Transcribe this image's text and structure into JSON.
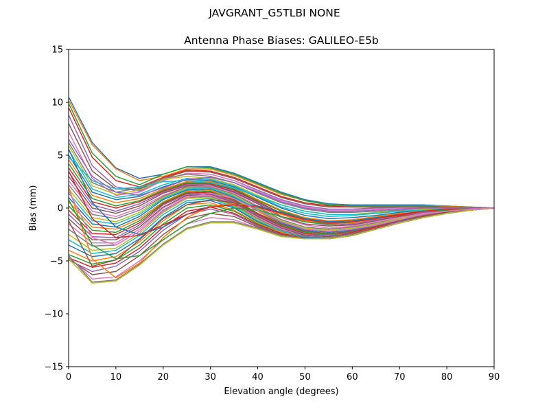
{
  "figure": {
    "suptitle": "JAVGRANT_G5TLBI NONE"
  },
  "chart_data": {
    "type": "line",
    "title": "Antenna Phase Biases: GALILEO-E5b",
    "xlabel": "Elevation angle (degrees)",
    "ylabel": "Bias (mm)",
    "xlim": [
      0,
      90
    ],
    "ylim": [
      -15,
      15
    ],
    "x_ticks": [
      "0",
      "10",
      "20",
      "30",
      "40",
      "50",
      "60",
      "70",
      "80",
      "90"
    ],
    "y_ticks": [
      "15",
      "10",
      "5",
      "0",
      "−5",
      "−10",
      "−15"
    ],
    "grid": false,
    "legend": "none",
    "colors": [
      "#1f77b4",
      "#ff7f0e",
      "#2ca02c",
      "#d62728",
      "#9467bd",
      "#8c564b",
      "#e377c2",
      "#7f7f7f",
      "#bcbd22",
      "#17becf"
    ],
    "x": [
      0,
      5,
      10,
      15,
      20,
      25,
      30,
      35,
      40,
      45,
      50,
      55,
      60,
      65,
      70,
      75,
      80,
      85,
      90
    ],
    "series": [
      {
        "values": [
          10.5,
          6.2,
          3.8,
          2.8,
          3.2,
          3.9,
          3.9,
          3.3,
          2.4,
          1.5,
          0.8,
          0.4,
          0.3,
          0.3,
          0.3,
          0.3,
          0.2,
          0.1,
          0.0
        ]
      },
      {
        "values": [
          10.2,
          6.0,
          3.7,
          2.6,
          3.0,
          3.7,
          3.7,
          3.1,
          2.2,
          1.3,
          0.7,
          0.3,
          0.2,
          0.2,
          0.2,
          0.2,
          0.2,
          0.1,
          0.0
        ]
      },
      {
        "values": [
          9.9,
          5.2,
          3.0,
          2.2,
          3.2,
          3.9,
          3.8,
          3.2,
          2.3,
          1.4,
          0.7,
          0.3,
          0.2,
          0.2,
          0.2,
          0.2,
          0.1,
          0.1,
          0.0
        ]
      },
      {
        "values": [
          9.5,
          4.8,
          2.6,
          2.0,
          2.9,
          3.6,
          3.5,
          2.9,
          2.0,
          1.1,
          0.5,
          0.2,
          0.1,
          0.1,
          0.1,
          0.1,
          0.1,
          0.0,
          0.0
        ]
      },
      {
        "values": [
          8.8,
          4.0,
          2.0,
          1.6,
          2.6,
          3.3,
          3.2,
          2.6,
          1.7,
          0.8,
          0.2,
          -0.1,
          -0.1,
          0.0,
          0.0,
          0.0,
          0.0,
          0.0,
          0.0
        ]
      },
      {
        "values": [
          8.0,
          3.5,
          1.8,
          1.8,
          2.8,
          3.5,
          3.4,
          2.8,
          1.9,
          1.0,
          0.4,
          0.1,
          0.1,
          0.1,
          0.1,
          0.1,
          0.1,
          0.0,
          0.0
        ]
      },
      {
        "values": [
          7.2,
          2.8,
          1.2,
          1.5,
          2.6,
          3.3,
          3.2,
          2.6,
          1.6,
          0.7,
          0.1,
          -0.2,
          -0.2,
          -0.1,
          0.0,
          0.0,
          0.0,
          0.0,
          0.0
        ]
      },
      {
        "values": [
          6.2,
          2.4,
          1.5,
          1.9,
          2.8,
          3.2,
          3.0,
          2.4,
          1.4,
          0.5,
          -0.1,
          -0.4,
          -0.4,
          -0.3,
          -0.2,
          -0.1,
          0.0,
          0.0,
          0.0
        ]
      },
      {
        "values": [
          5.9,
          2.1,
          1.3,
          1.7,
          2.7,
          3.0,
          2.8,
          2.2,
          1.2,
          0.3,
          -0.3,
          -0.6,
          -0.6,
          -0.4,
          -0.3,
          -0.1,
          0.0,
          0.0,
          0.0
        ]
      },
      {
        "values": [
          5.5,
          1.8,
          1.0,
          1.3,
          2.2,
          2.8,
          2.7,
          2.1,
          1.1,
          0.1,
          -0.5,
          -0.8,
          -0.7,
          -0.5,
          -0.3,
          -0.2,
          -0.1,
          0.0,
          0.0
        ]
      },
      {
        "values": [
          5.0,
          1.5,
          0.8,
          1.1,
          2.0,
          2.7,
          2.6,
          2.0,
          1.0,
          0.0,
          -0.7,
          -1.0,
          -0.9,
          -0.7,
          -0.4,
          -0.2,
          -0.1,
          0.0,
          0.0
        ]
      },
      {
        "values": [
          4.6,
          1.2,
          0.5,
          0.9,
          1.8,
          2.5,
          2.5,
          1.9,
          0.8,
          -0.2,
          -0.9,
          -1.2,
          -1.1,
          -0.8,
          -0.5,
          -0.3,
          -0.1,
          0.0,
          0.0
        ]
      },
      {
        "values": [
          4.2,
          0.9,
          0.2,
          0.7,
          1.7,
          2.4,
          2.4,
          1.8,
          0.7,
          -0.3,
          -1.0,
          -1.3,
          -1.2,
          -0.9,
          -0.6,
          -0.3,
          -0.1,
          0.0,
          0.0
        ]
      },
      {
        "values": [
          3.8,
          0.6,
          0.0,
          0.6,
          1.6,
          2.3,
          2.3,
          1.7,
          0.6,
          -0.5,
          -1.2,
          -1.5,
          -1.4,
          -1.0,
          -0.7,
          -0.4,
          -0.2,
          -0.1,
          0.0
        ]
      },
      {
        "values": [
          3.4,
          0.3,
          -0.3,
          0.4,
          1.5,
          2.2,
          2.2,
          1.6,
          0.5,
          -0.6,
          -1.3,
          -1.6,
          -1.5,
          -1.1,
          -0.8,
          -0.4,
          -0.2,
          -0.1,
          0.0
        ]
      },
      {
        "values": [
          3.0,
          0.0,
          -0.5,
          0.2,
          1.4,
          2.1,
          2.2,
          1.5,
          0.4,
          -0.8,
          -1.5,
          -1.7,
          -1.6,
          -1.2,
          -0.8,
          -0.5,
          -0.2,
          -0.1,
          0.0
        ]
      },
      {
        "values": [
          2.6,
          -0.3,
          -0.8,
          0.0,
          1.2,
          2.0,
          2.1,
          1.4,
          0.2,
          -0.9,
          -1.6,
          -1.9,
          -1.7,
          -1.3,
          -0.9,
          -0.5,
          -0.3,
          -0.1,
          0.0
        ]
      },
      {
        "values": [
          2.2,
          -0.6,
          -1.0,
          -0.2,
          1.1,
          2.0,
          2.0,
          1.3,
          0.1,
          -1.1,
          -1.8,
          -2.0,
          -1.8,
          -1.4,
          -1.0,
          -0.6,
          -0.3,
          -0.1,
          0.0
        ]
      },
      {
        "values": [
          1.8,
          -0.9,
          -1.3,
          -0.4,
          1.0,
          1.9,
          1.9,
          1.2,
          0.0,
          -1.2,
          -1.9,
          -2.1,
          -1.9,
          -1.5,
          -1.0,
          -0.6,
          -0.3,
          -0.1,
          0.0
        ]
      },
      {
        "values": [
          1.4,
          -1.2,
          -1.5,
          -0.6,
          0.9,
          1.8,
          1.9,
          1.1,
          -0.1,
          -1.3,
          -2.0,
          -2.2,
          -2.0,
          -1.6,
          -1.1,
          -0.6,
          -0.3,
          -0.1,
          0.0
        ]
      },
      {
        "values": [
          1.0,
          -1.5,
          -1.8,
          -0.8,
          0.8,
          1.7,
          1.8,
          1.0,
          -0.2,
          -1.4,
          -2.1,
          -2.3,
          -2.1,
          -1.6,
          -1.1,
          -0.7,
          -0.3,
          -0.1,
          0.0
        ]
      },
      {
        "values": [
          0.6,
          -1.8,
          -2.0,
          -1.0,
          0.6,
          1.6,
          1.7,
          0.9,
          -0.3,
          -1.5,
          -2.2,
          -2.4,
          -2.2,
          -1.7,
          -1.2,
          -0.7,
          -0.4,
          -0.1,
          0.0
        ]
      },
      {
        "values": [
          0.2,
          -2.1,
          -2.3,
          -1.2,
          0.5,
          1.5,
          1.6,
          0.8,
          -0.5,
          -1.6,
          -2.3,
          -2.5,
          -2.2,
          -1.8,
          -1.2,
          -0.7,
          -0.4,
          -0.1,
          0.0
        ]
      },
      {
        "values": [
          -0.2,
          -2.4,
          -2.5,
          -1.4,
          0.4,
          1.4,
          1.5,
          0.7,
          -0.6,
          -1.7,
          -2.4,
          -2.6,
          -2.3,
          -1.8,
          -1.3,
          -0.8,
          -0.4,
          -0.2,
          0.0
        ]
      },
      {
        "values": [
          -0.6,
          -2.7,
          -2.8,
          -1.6,
          0.3,
          1.3,
          1.4,
          0.6,
          -0.7,
          -1.8,
          -2.5,
          -2.6,
          -2.4,
          -1.9,
          -1.3,
          -0.8,
          -0.4,
          -0.2,
          0.0
        ]
      },
      {
        "values": [
          -1.0,
          -3.0,
          -3.0,
          -1.8,
          0.1,
          1.2,
          1.3,
          0.5,
          -0.8,
          -1.9,
          -2.6,
          -2.7,
          -2.4,
          -1.9,
          -1.4,
          -0.8,
          -0.4,
          -0.2,
          0.0
        ]
      },
      {
        "values": [
          -1.5,
          -3.3,
          -3.3,
          -2.0,
          0.0,
          1.1,
          1.2,
          0.4,
          -0.9,
          -2.0,
          -2.7,
          -2.8,
          -2.5,
          -2.0,
          -1.4,
          -0.9,
          -0.5,
          -0.2,
          0.0
        ]
      },
      {
        "values": [
          -2.0,
          -3.6,
          -3.5,
          -2.2,
          -0.2,
          1.0,
          1.1,
          0.3,
          -1.0,
          -2.1,
          -2.7,
          -2.8,
          -2.5,
          -2.0,
          -1.4,
          -0.9,
          -0.5,
          -0.2,
          0.0
        ]
      },
      {
        "values": [
          -2.5,
          -4.0,
          -3.8,
          -2.4,
          -0.4,
          0.9,
          1.0,
          0.2,
          -1.1,
          -2.2,
          -2.8,
          -2.9,
          -2.6,
          -2.0,
          -1.4,
          -0.9,
          -0.5,
          -0.2,
          0.0
        ]
      },
      {
        "values": [
          -3.0,
          -4.3,
          -4.0,
          -2.6,
          -0.6,
          0.7,
          0.9,
          0.1,
          -1.2,
          -2.2,
          -2.8,
          -2.9,
          -2.6,
          -2.0,
          -1.4,
          -0.9,
          -0.5,
          -0.2,
          0.0
        ]
      },
      {
        "values": [
          -3.5,
          -4.6,
          -4.3,
          -2.9,
          -0.9,
          0.5,
          0.7,
          0.0,
          -1.3,
          -2.3,
          -2.8,
          -2.9,
          -2.6,
          -2.0,
          -1.4,
          -0.9,
          -0.5,
          -0.2,
          0.0
        ]
      },
      {
        "values": [
          -4.0,
          -5.0,
          -4.6,
          -3.2,
          -1.2,
          0.3,
          0.5,
          -0.2,
          -1.4,
          -2.3,
          -2.9,
          -2.9,
          -2.6,
          -2.0,
          -1.4,
          -0.9,
          -0.5,
          -0.2,
          0.0
        ]
      },
      {
        "values": [
          -4.4,
          -5.3,
          -4.9,
          -3.5,
          -1.5,
          0.0,
          0.3,
          -0.3,
          -1.5,
          -2.4,
          -2.9,
          -2.9,
          -2.6,
          -2.0,
          -1.4,
          -0.9,
          -0.5,
          -0.2,
          0.0
        ]
      },
      {
        "values": [
          -4.7,
          -5.6,
          -5.2,
          -3.8,
          -1.8,
          -0.3,
          0.1,
          -0.5,
          -1.6,
          -2.4,
          -2.9,
          -2.9,
          -2.6,
          -2.0,
          -1.4,
          -0.9,
          -0.5,
          -0.2,
          0.0
        ]
      },
      {
        "values": [
          -4.9,
          -6.0,
          -5.5,
          -4.1,
          -2.1,
          -0.6,
          -0.1,
          -0.6,
          -1.7,
          -2.5,
          -2.9,
          -2.9,
          -2.6,
          -2.0,
          -1.4,
          -0.9,
          -0.5,
          -0.2,
          0.0
        ]
      },
      {
        "values": [
          -4.8,
          -6.3,
          -6.0,
          -4.5,
          -2.5,
          -1.0,
          -0.5,
          -0.8,
          -1.8,
          -2.5,
          -2.9,
          -2.9,
          -2.6,
          -2.0,
          -1.4,
          -0.9,
          -0.5,
          -0.2,
          0.0
        ]
      },
      {
        "values": [
          -4.6,
          -6.7,
          -6.5,
          -5.0,
          -3.0,
          -1.5,
          -0.9,
          -1.1,
          -1.9,
          -2.6,
          -2.9,
          -2.9,
          -2.6,
          -2.0,
          -1.4,
          -0.9,
          -0.5,
          -0.2,
          0.0
        ]
      },
      {
        "values": [
          -4.5,
          -7.0,
          -6.8,
          -5.3,
          -3.4,
          -1.9,
          -1.3,
          -1.3,
          -1.9,
          -2.6,
          -2.9,
          -2.9,
          -2.6,
          -2.0,
          -1.4,
          -0.9,
          -0.5,
          -0.2,
          0.0
        ]
      },
      {
        "values": [
          -4.8,
          -7.1,
          -6.9,
          -5.4,
          -3.5,
          -2.0,
          -1.4,
          -1.4,
          -2.0,
          -2.7,
          -2.9,
          -2.9,
          -2.6,
          -2.0,
          -1.4,
          -0.9,
          -0.5,
          -0.2,
          0.0
        ]
      },
      {
        "values": [
          4.8,
          2.6,
          1.8,
          2.0,
          2.5,
          2.6,
          2.4,
          1.9,
          1.1,
          0.3,
          -0.3,
          -0.6,
          -0.6,
          -0.5,
          -0.3,
          -0.2,
          -0.1,
          0.0,
          0.0
        ]
      },
      {
        "values": [
          5.6,
          0.5,
          -1.8,
          -2.5,
          -1.8,
          -0.6,
          0.2,
          0.4,
          0.2,
          -0.4,
          -1.0,
          -1.3,
          -1.2,
          -0.9,
          -0.6,
          -0.3,
          -0.1,
          0.0,
          0.0
        ]
      },
      {
        "values": [
          2.0,
          -4.8,
          -6.6,
          -5.2,
          -2.8,
          -0.9,
          0.2,
          0.4,
          0.1,
          -0.6,
          -1.2,
          -1.5,
          -1.4,
          -1.0,
          -0.6,
          -0.3,
          -0.1,
          0.0,
          0.0
        ]
      },
      {
        "values": [
          0.8,
          -3.5,
          -4.8,
          -4.5,
          -3.0,
          -1.5,
          -0.5,
          0.0,
          -0.2,
          -0.8,
          -1.3,
          -1.5,
          -1.3,
          -1.0,
          -0.6,
          -0.3,
          -0.2,
          -0.1,
          0.0
        ]
      },
      {
        "values": [
          3.5,
          -1.0,
          -2.8,
          -2.6,
          -1.6,
          -0.6,
          0.1,
          0.3,
          0.1,
          -0.5,
          -1.1,
          -1.4,
          -1.3,
          -1.0,
          -0.6,
          -0.3,
          -0.1,
          0.0,
          0.0
        ]
      },
      {
        "values": [
          6.5,
          3.0,
          1.5,
          1.2,
          1.9,
          2.7,
          2.9,
          2.4,
          1.5,
          0.6,
          0.0,
          -0.3,
          -0.3,
          -0.2,
          -0.1,
          0.0,
          0.0,
          0.0,
          0.0
        ]
      },
      {
        "values": [
          -1.2,
          -5.5,
          -4.9,
          -3.0,
          -1.0,
          0.3,
          0.8,
          0.5,
          -0.5,
          -1.5,
          -2.2,
          -2.4,
          -2.2,
          -1.7,
          -1.2,
          -0.7,
          -0.3,
          -0.1,
          0.0
        ]
      },
      {
        "values": [
          1.6,
          -2.8,
          -3.5,
          -2.2,
          -0.3,
          1.0,
          1.4,
          0.9,
          -0.2,
          -1.3,
          -2.0,
          -2.2,
          -2.0,
          -1.6,
          -1.1,
          -0.6,
          -0.3,
          -0.1,
          0.0
        ]
      }
    ]
  }
}
